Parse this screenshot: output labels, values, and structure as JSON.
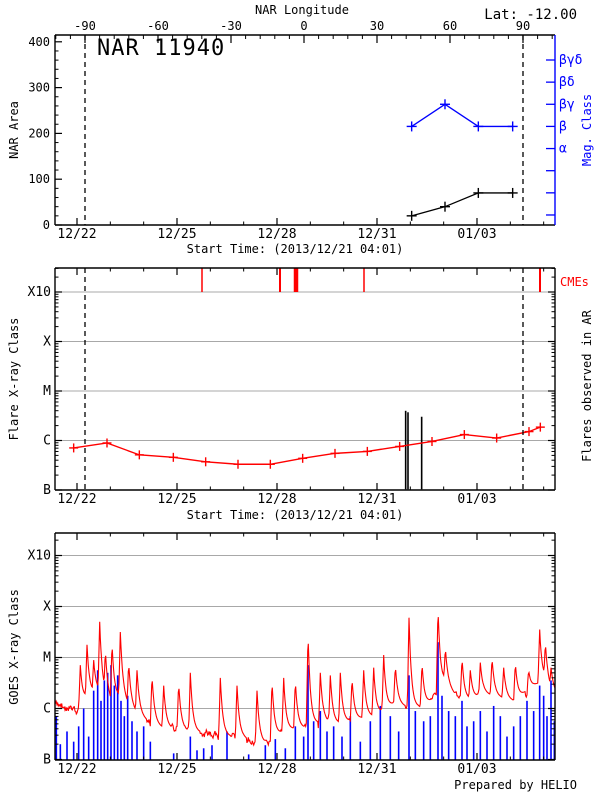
{
  "header": {
    "lat": "Lat: -12.00",
    "credit": "Prepared by HELIO"
  },
  "colors": {
    "red": "#ff0000",
    "blue": "#0000ff",
    "black": "#000000",
    "grid": "#a8a8a8",
    "background": "#ffffff"
  },
  "time_axis": {
    "start_label": "Start Time: (2013/12/21 04:01)",
    "t_min": -0.66,
    "t_max": 14.34,
    "major_ticks": [
      {
        "t": 0,
        "label": "12/22"
      },
      {
        "t": 3,
        "label": "12/25"
      },
      {
        "t": 6,
        "label": "12/28"
      },
      {
        "t": 9,
        "label": "12/31"
      },
      {
        "t": 12,
        "label": "01/03"
      }
    ],
    "minor_step_days": 1,
    "limb_crossings_t": [
      0.24,
      13.38
    ]
  },
  "chart_data": [
    {
      "id": "nar-area-mag",
      "type": "line",
      "title": "NAR 11940",
      "ylabel": "NAR Area",
      "ylim": [
        0,
        415
      ],
      "yticks": [
        0,
        100,
        200,
        300,
        400
      ],
      "y_minor_step": 20,
      "top_axis": {
        "label": "NAR Longitude",
        "ticks": [
          -90,
          -60,
          -30,
          0,
          30,
          60,
          90
        ],
        "minor_step_deg": 6
      },
      "right_axis": {
        "label": "Mag. Class",
        "labels_top_to_bottom": [
          "βγδ",
          "βδ",
          "βγ",
          "β",
          "α"
        ],
        "n_ticks": 8
      },
      "series": [
        {
          "name": "area",
          "color": "black",
          "marker": "+",
          "t": [
            10.04,
            11.04,
            12.04,
            13.07
          ],
          "values": [
            20,
            40,
            70,
            70
          ]
        },
        {
          "name": "mag_class",
          "color": "blue",
          "marker": "+",
          "t": [
            10.04,
            11.04,
            12.04,
            13.07
          ],
          "values": [
            "β",
            "βγ",
            "β",
            "β"
          ]
        }
      ]
    },
    {
      "id": "flares-in-ar",
      "type": "line",
      "ylabel": "Flare X-ray Class",
      "right_label": "Flares observed in AR",
      "cme_label": "CMEs",
      "ytick_labels": [
        "B",
        "C",
        "M",
        "X",
        "X10"
      ],
      "background_flux": {
        "comment_units": "v = decades above B (B=0, C=1, M=2, X=3, X10=4)",
        "points": [
          [
            -0.1,
            0.85
          ],
          [
            0.9,
            0.95
          ],
          [
            1.87,
            0.71
          ],
          [
            2.89,
            0.66
          ],
          [
            3.86,
            0.57
          ],
          [
            4.83,
            0.52
          ],
          [
            5.8,
            0.52
          ],
          [
            6.77,
            0.64
          ],
          [
            7.74,
            0.74
          ],
          [
            8.71,
            0.78
          ],
          [
            9.68,
            0.88
          ],
          [
            10.65,
            0.98
          ],
          [
            11.62,
            1.12
          ],
          [
            12.59,
            1.05
          ],
          [
            13.56,
            1.18
          ],
          [
            13.9,
            1.27
          ]
        ]
      },
      "flares": [
        {
          "t": 9.86,
          "v": 1.6
        },
        {
          "t": 9.93,
          "v": 1.57
        },
        {
          "t": 10.34,
          "v": 1.48
        }
      ],
      "cmes": [
        {
          "t": 3.75,
          "w": 1.5
        },
        {
          "t": 6.09,
          "w": 2
        },
        {
          "t": 6.57,
          "w": 4.5
        },
        {
          "t": 8.61,
          "w": 1.5
        },
        {
          "t": 13.89,
          "w": 2
        }
      ]
    },
    {
      "id": "goes-xray",
      "type": "line",
      "ylabel": "GOES X-ray Class",
      "ytick_labels": [
        "B",
        "C",
        "M",
        "X",
        "X10"
      ],
      "long_channel": {
        "color": "#ff0000",
        "baseline": [
          [
            -0.66,
            1.15
          ],
          [
            -0.4,
            1.05
          ],
          [
            0,
            0.95
          ],
          [
            0.3,
            1.25
          ],
          [
            0.7,
            1.35
          ],
          [
            1,
            1.1
          ],
          [
            1.3,
            1.25
          ],
          [
            1.6,
            1.0
          ],
          [
            1.9,
            0.85
          ],
          [
            2.2,
            0.72
          ],
          [
            2.6,
            0.62
          ],
          [
            3,
            0.6
          ],
          [
            3.4,
            0.55
          ],
          [
            3.8,
            0.52
          ],
          [
            4.2,
            0.48
          ],
          [
            4.6,
            0.45
          ],
          [
            5,
            0.42
          ],
          [
            5.3,
            0.35
          ],
          [
            5.6,
            0.32
          ],
          [
            5.9,
            0.45
          ],
          [
            6.2,
            0.55
          ],
          [
            6.5,
            0.6
          ],
          [
            6.8,
            0.62
          ],
          [
            7.1,
            0.68
          ],
          [
            7.4,
            0.75
          ],
          [
            7.7,
            0.7
          ],
          [
            8,
            0.72
          ],
          [
            8.3,
            0.78
          ],
          [
            8.6,
            0.82
          ],
          [
            8.9,
            0.85
          ],
          [
            9.2,
            0.95
          ],
          [
            9.5,
            1.1
          ],
          [
            9.8,
            1.05
          ],
          [
            10.1,
            1.0
          ],
          [
            10.4,
            1.05
          ],
          [
            10.7,
            1.2
          ],
          [
            11,
            1.5
          ],
          [
            11.3,
            1.3
          ],
          [
            11.6,
            1.15
          ],
          [
            11.9,
            1.2
          ],
          [
            12.2,
            1.3
          ],
          [
            12.5,
            1.25
          ],
          [
            12.8,
            1.2
          ],
          [
            13.1,
            1.15
          ],
          [
            13.4,
            1.3
          ],
          [
            13.7,
            1.45
          ],
          [
            14,
            1.55
          ],
          [
            14.2,
            1.35
          ],
          [
            14.34,
            1.3
          ]
        ],
        "spikes": [
          [
            0.1,
            1.85
          ],
          [
            0.3,
            2.25
          ],
          [
            0.5,
            1.95
          ],
          [
            0.68,
            2.7
          ],
          [
            0.85,
            2.15
          ],
          [
            1.05,
            2.3
          ],
          [
            1.3,
            2.5
          ],
          [
            1.55,
            1.9
          ],
          [
            1.8,
            1.75
          ],
          [
            2.25,
            1.65
          ],
          [
            2.6,
            1.45
          ],
          [
            3.05,
            1.5
          ],
          [
            3.4,
            1.7
          ],
          [
            4.3,
            1.6
          ],
          [
            4.8,
            1.45
          ],
          [
            5.4,
            1.35
          ],
          [
            5.85,
            1.55
          ],
          [
            6.2,
            1.6
          ],
          [
            6.55,
            1.55
          ],
          [
            6.93,
            2.5
          ],
          [
            7.3,
            1.7
          ],
          [
            7.6,
            1.65
          ],
          [
            7.9,
            1.7
          ],
          [
            8.25,
            1.6
          ],
          [
            8.6,
            1.75
          ],
          [
            8.9,
            1.8
          ],
          [
            9.2,
            2.05
          ],
          [
            9.55,
            1.85
          ],
          [
            9.96,
            2.78
          ],
          [
            10.35,
            1.9
          ],
          [
            10.83,
            3.0
          ],
          [
            11.05,
            2.2
          ],
          [
            11.55,
            2.0
          ],
          [
            11.8,
            1.75
          ],
          [
            12.1,
            1.9
          ],
          [
            12.45,
            2.0
          ],
          [
            12.8,
            1.8
          ],
          [
            13.15,
            1.9
          ],
          [
            13.55,
            1.75
          ],
          [
            13.88,
            2.55
          ],
          [
            14.05,
            2.3
          ],
          [
            14.22,
            1.8
          ]
        ]
      },
      "short_channel": {
        "color": "#0000ff",
        "spikes": [
          [
            -0.62,
            0.85
          ],
          [
            -0.5,
            0.3
          ],
          [
            -0.3,
            0.55
          ],
          [
            -0.1,
            0.35
          ],
          [
            0.05,
            0.65
          ],
          [
            0.2,
            1.0
          ],
          [
            0.35,
            0.45
          ],
          [
            0.5,
            1.35
          ],
          [
            0.62,
            1.75
          ],
          [
            0.72,
            1.15
          ],
          [
            0.82,
            1.55
          ],
          [
            0.92,
            1.7
          ],
          [
            1.02,
            1.85
          ],
          [
            1.12,
            1.45
          ],
          [
            1.22,
            1.65
          ],
          [
            1.32,
            1.15
          ],
          [
            1.42,
            0.85
          ],
          [
            1.52,
            1.25
          ],
          [
            1.65,
            0.75
          ],
          [
            1.8,
            0.55
          ],
          [
            2.0,
            0.65
          ],
          [
            2.2,
            0.35
          ],
          [
            2.9,
            0.12
          ],
          [
            3.4,
            0.45
          ],
          [
            3.6,
            0.18
          ],
          [
            3.8,
            0.22
          ],
          [
            4.05,
            0.28
          ],
          [
            4.5,
            0.55
          ],
          [
            5.15,
            0.1
          ],
          [
            5.65,
            0.28
          ],
          [
            5.95,
            0.4
          ],
          [
            6.25,
            0.22
          ],
          [
            6.55,
            0.65
          ],
          [
            6.8,
            0.45
          ],
          [
            6.93,
            1.85
          ],
          [
            7.1,
            0.75
          ],
          [
            7.3,
            0.95
          ],
          [
            7.5,
            0.55
          ],
          [
            7.7,
            0.65
          ],
          [
            7.95,
            0.45
          ],
          [
            8.2,
            0.85
          ],
          [
            8.5,
            0.35
          ],
          [
            8.8,
            0.75
          ],
          [
            9.1,
            1.05
          ],
          [
            9.4,
            0.85
          ],
          [
            9.65,
            0.55
          ],
          [
            9.96,
            1.65
          ],
          [
            10.15,
            0.95
          ],
          [
            10.4,
            0.75
          ],
          [
            10.6,
            0.85
          ],
          [
            10.83,
            2.3
          ],
          [
            10.95,
            1.25
          ],
          [
            11.15,
            0.95
          ],
          [
            11.35,
            0.85
          ],
          [
            11.55,
            1.15
          ],
          [
            11.7,
            0.65
          ],
          [
            11.9,
            0.75
          ],
          [
            12.1,
            0.95
          ],
          [
            12.3,
            0.55
          ],
          [
            12.5,
            1.05
          ],
          [
            12.7,
            0.85
          ],
          [
            12.9,
            0.45
          ],
          [
            13.1,
            0.65
          ],
          [
            13.3,
            0.85
          ],
          [
            13.5,
            1.15
          ],
          [
            13.7,
            0.95
          ],
          [
            13.88,
            1.45
          ],
          [
            14.0,
            1.25
          ],
          [
            14.1,
            0.85
          ],
          [
            14.22,
            1.55
          ],
          [
            14.32,
            0.75
          ]
        ]
      }
    }
  ]
}
